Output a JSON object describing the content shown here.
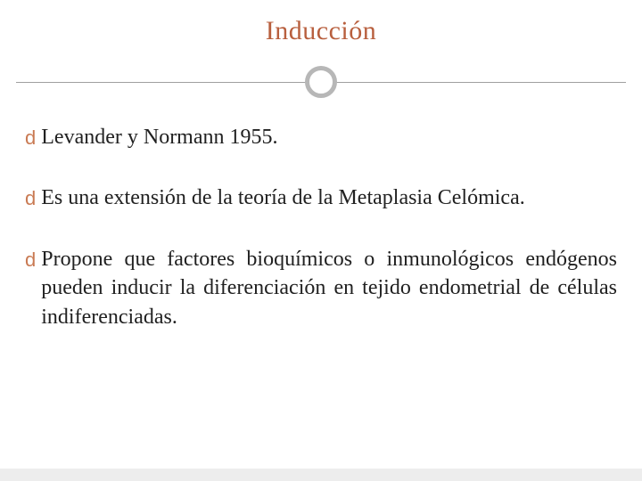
{
  "colors": {
    "title_text": "#b85f3e",
    "body_text": "#212121",
    "divider_line": "#9f9f9f",
    "divider_circle_border": "#b7b7b7",
    "bullet_icon": "#c97a53",
    "footer_bar": "#ededed",
    "background": "#ffffff"
  },
  "typography": {
    "title_fontsize": 30,
    "body_fontsize": 24,
    "font_family": "Georgia, 'Times New Roman', serif"
  },
  "title": "Inducción",
  "bullets": [
    {
      "text": "Levander y Normann 1955."
    },
    {
      "text": "Es una extensión de la teoría de la Metaplasia Celómica."
    },
    {
      "text": "Propone que factores bioquímicos o inmunológicos endógenos pueden inducir la diferenciación en tejido endometrial de células indiferenciadas."
    }
  ],
  "bullet_glyph": "d"
}
